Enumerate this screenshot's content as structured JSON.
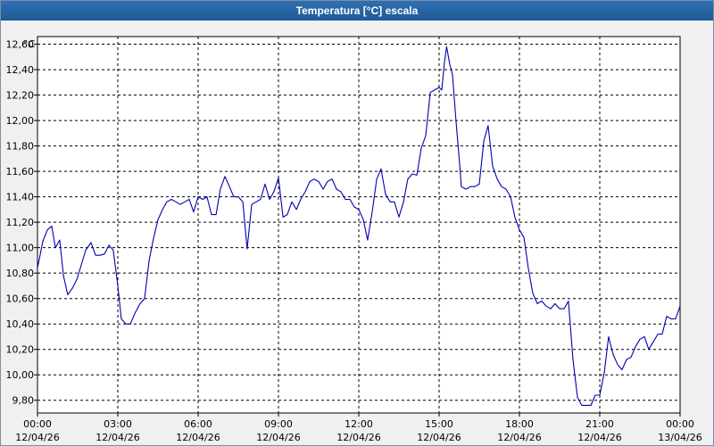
{
  "window": {
    "title": "Temperatura [°C] escala"
  },
  "chart_data": {
    "type": "line",
    "title": "Temperatura [°C] escala",
    "ylabel": "°C",
    "xlabel": "",
    "ylim": [
      9.7,
      12.66
    ],
    "xlim": [
      0,
      24
    ],
    "grid": true,
    "colors": {
      "line": "#0000b0",
      "grid": "#000000",
      "background": "#ffffff"
    },
    "y_ticks": [
      "9,80",
      "10,00",
      "10,20",
      "10,40",
      "10,60",
      "10,80",
      "11,00",
      "11,20",
      "11,40",
      "11,60",
      "11,80",
      "12,00",
      "12,20",
      "12,40",
      "12,60"
    ],
    "y_tick_values": [
      9.8,
      10.0,
      10.2,
      10.4,
      10.6,
      10.8,
      11.0,
      11.2,
      11.4,
      11.6,
      11.8,
      12.0,
      12.2,
      12.4,
      12.6
    ],
    "x_ticks": [
      {
        "time": "00:00",
        "date": "12/04/26"
      },
      {
        "time": "03:00",
        "date": "12/04/26"
      },
      {
        "time": "06:00",
        "date": "12/04/26"
      },
      {
        "time": "09:00",
        "date": "12/04/26"
      },
      {
        "time": "12:00",
        "date": "12/04/26"
      },
      {
        "time": "15:00",
        "date": "12/04/26"
      },
      {
        "time": "18:00",
        "date": "12/04/26"
      },
      {
        "time": "21:00",
        "date": "12/04/26"
      },
      {
        "time": "00:00",
        "date": "13/04/26"
      }
    ],
    "x_tick_hours": [
      0,
      3,
      6,
      9,
      12,
      15,
      18,
      21,
      24
    ],
    "series": [
      {
        "points": [
          [
            0.0,
            10.84
          ],
          [
            0.2,
            11.05
          ],
          [
            0.37,
            11.14
          ],
          [
            0.53,
            11.17
          ],
          [
            0.67,
            11.0
          ],
          [
            0.83,
            11.06
          ],
          [
            0.97,
            10.78
          ],
          [
            1.13,
            10.63
          ],
          [
            1.3,
            10.68
          ],
          [
            1.47,
            10.75
          ],
          [
            1.63,
            10.86
          ],
          [
            1.8,
            10.98
          ],
          [
            2.0,
            11.04
          ],
          [
            2.17,
            10.94
          ],
          [
            2.33,
            10.94
          ],
          [
            2.5,
            10.95
          ],
          [
            2.67,
            11.02
          ],
          [
            2.83,
            10.98
          ],
          [
            3.0,
            10.7
          ],
          [
            3.13,
            10.44
          ],
          [
            3.3,
            10.4
          ],
          [
            3.47,
            10.4
          ],
          [
            3.63,
            10.48
          ],
          [
            3.83,
            10.56
          ],
          [
            4.0,
            10.6
          ],
          [
            4.17,
            10.9
          ],
          [
            4.33,
            11.07
          ],
          [
            4.5,
            11.22
          ],
          [
            4.67,
            11.3
          ],
          [
            4.83,
            11.36
          ],
          [
            5.0,
            11.38
          ],
          [
            5.17,
            11.36
          ],
          [
            5.33,
            11.34
          ],
          [
            5.5,
            11.36
          ],
          [
            5.67,
            11.38
          ],
          [
            5.83,
            11.28
          ],
          [
            6.0,
            11.4
          ],
          [
            6.17,
            11.38
          ],
          [
            6.33,
            11.4
          ],
          [
            6.5,
            11.26
          ],
          [
            6.67,
            11.26
          ],
          [
            6.83,
            11.46
          ],
          [
            7.0,
            11.56
          ],
          [
            7.17,
            11.48
          ],
          [
            7.33,
            11.4
          ],
          [
            7.5,
            11.4
          ],
          [
            7.67,
            11.36
          ],
          [
            7.83,
            10.99
          ],
          [
            8.0,
            11.34
          ],
          [
            8.17,
            11.36
          ],
          [
            8.33,
            11.38
          ],
          [
            8.5,
            11.5
          ],
          [
            8.67,
            11.38
          ],
          [
            8.83,
            11.44
          ],
          [
            9.0,
            11.55
          ],
          [
            9.17,
            11.24
          ],
          [
            9.33,
            11.26
          ],
          [
            9.5,
            11.36
          ],
          [
            9.67,
            11.3
          ],
          [
            9.83,
            11.38
          ],
          [
            10.0,
            11.44
          ],
          [
            10.17,
            11.52
          ],
          [
            10.33,
            11.54
          ],
          [
            10.5,
            11.52
          ],
          [
            10.67,
            11.46
          ],
          [
            10.83,
            11.52
          ],
          [
            11.0,
            11.54
          ],
          [
            11.17,
            11.46
          ],
          [
            11.33,
            11.44
          ],
          [
            11.5,
            11.38
          ],
          [
            11.67,
            11.38
          ],
          [
            11.83,
            11.32
          ],
          [
            12.0,
            11.3
          ],
          [
            12.17,
            11.22
          ],
          [
            12.33,
            11.06
          ],
          [
            12.5,
            11.28
          ],
          [
            12.67,
            11.54
          ],
          [
            12.83,
            11.62
          ],
          [
            13.0,
            11.42
          ],
          [
            13.17,
            11.36
          ],
          [
            13.33,
            11.36
          ],
          [
            13.5,
            11.24
          ],
          [
            13.67,
            11.36
          ],
          [
            13.83,
            11.54
          ],
          [
            14.0,
            11.58
          ],
          [
            14.17,
            11.57
          ],
          [
            14.33,
            11.78
          ],
          [
            14.5,
            11.88
          ],
          [
            14.67,
            12.22
          ],
          [
            14.83,
            12.24
          ],
          [
            15.0,
            12.26
          ],
          [
            15.1,
            12.24
          ],
          [
            15.2,
            12.46
          ],
          [
            15.28,
            12.58
          ],
          [
            15.4,
            12.44
          ],
          [
            15.5,
            12.36
          ],
          [
            15.63,
            12.0
          ],
          [
            15.75,
            11.7
          ],
          [
            15.83,
            11.48
          ],
          [
            16.0,
            11.46
          ],
          [
            16.17,
            11.48
          ],
          [
            16.33,
            11.48
          ],
          [
            16.5,
            11.5
          ],
          [
            16.67,
            11.84
          ],
          [
            16.83,
            11.96
          ],
          [
            17.0,
            11.64
          ],
          [
            17.17,
            11.54
          ],
          [
            17.33,
            11.48
          ],
          [
            17.5,
            11.46
          ],
          [
            17.67,
            11.4
          ],
          [
            17.83,
            11.24
          ],
          [
            18.0,
            11.14
          ],
          [
            18.17,
            11.08
          ],
          [
            18.33,
            10.84
          ],
          [
            18.5,
            10.64
          ],
          [
            18.67,
            10.56
          ],
          [
            18.83,
            10.58
          ],
          [
            19.0,
            10.54
          ],
          [
            19.17,
            10.52
          ],
          [
            19.33,
            10.56
          ],
          [
            19.5,
            10.52
          ],
          [
            19.67,
            10.52
          ],
          [
            19.83,
            10.58
          ],
          [
            20.0,
            10.12
          ],
          [
            20.17,
            9.82
          ],
          [
            20.33,
            9.76
          ],
          [
            20.5,
            9.76
          ],
          [
            20.67,
            9.76
          ],
          [
            20.83,
            9.84
          ],
          [
            21.0,
            9.84
          ],
          [
            21.17,
            10.02
          ],
          [
            21.33,
            10.3
          ],
          [
            21.5,
            10.16
          ],
          [
            21.67,
            10.08
          ],
          [
            21.83,
            10.04
          ],
          [
            22.0,
            10.12
          ],
          [
            22.17,
            10.14
          ],
          [
            22.33,
            10.22
          ],
          [
            22.5,
            10.28
          ],
          [
            22.67,
            10.3
          ],
          [
            22.83,
            10.2
          ],
          [
            23.0,
            10.26
          ],
          [
            23.17,
            10.32
          ],
          [
            23.33,
            10.32
          ],
          [
            23.5,
            10.46
          ],
          [
            23.67,
            10.44
          ],
          [
            23.83,
            10.44
          ],
          [
            24.0,
            10.54
          ]
        ]
      }
    ]
  }
}
